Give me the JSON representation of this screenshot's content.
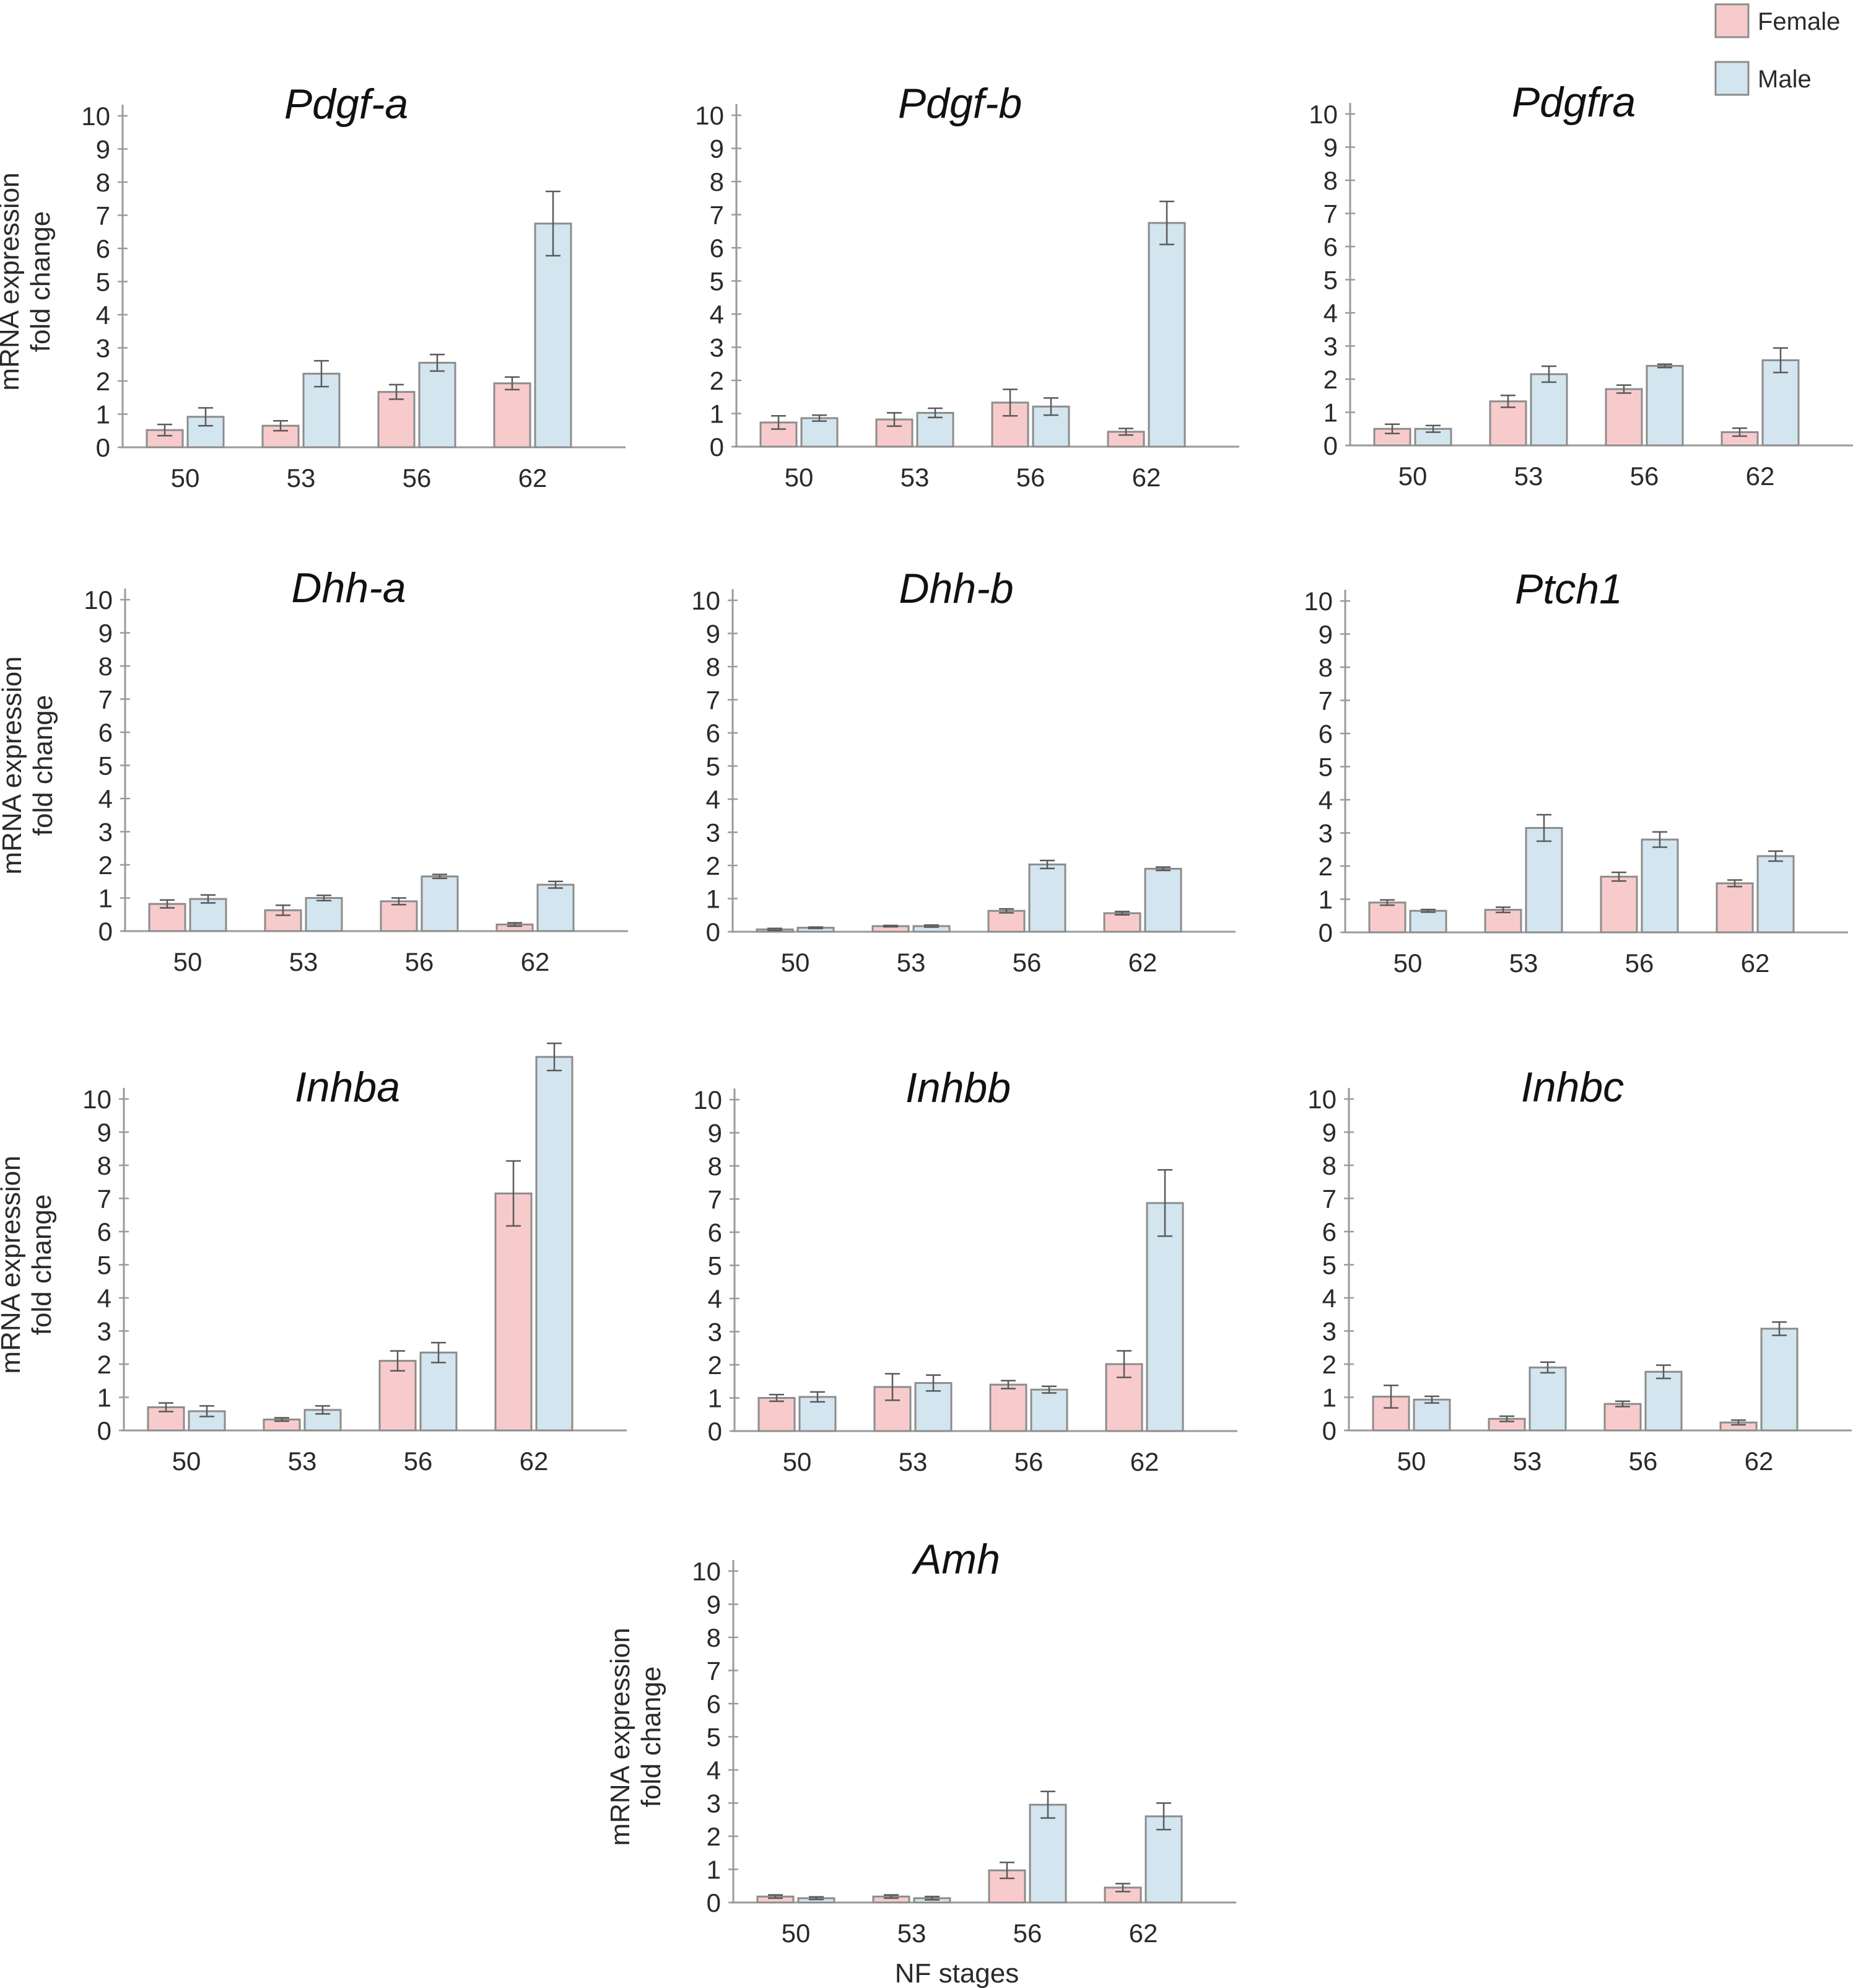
{
  "legend": {
    "items": [
      {
        "label": "Female",
        "color": "#f7cbcc"
      },
      {
        "label": "Male",
        "color": "#d3e5ee"
      }
    ]
  },
  "colors": {
    "female": "#f7cbcc",
    "male": "#d3e5ee",
    "bar_stroke": "#8c8c8c",
    "axis": "#9a9a9a",
    "error_bar": "#5a5a5a"
  },
  "shared_xlabel": "NF stages",
  "chart_data": [
    {
      "type": "bar",
      "title": "Pdgf-a",
      "xlabel": "",
      "ylabel": "mRNA expression\nfold change",
      "ylabel_lines": [
        "mRNA expression",
        "fold change"
      ],
      "categories": [
        "50",
        "53",
        "56",
        "62"
      ],
      "yticks": [
        0,
        1,
        2,
        3,
        4,
        5,
        6,
        7,
        8,
        9,
        10
      ],
      "ylim": [
        0,
        10
      ],
      "series": [
        {
          "name": "Female",
          "values": [
            0.52,
            0.65,
            1.67,
            1.93
          ],
          "errors": [
            0.17,
            0.15,
            0.22,
            0.19
          ]
        },
        {
          "name": "Male",
          "values": [
            0.92,
            2.22,
            2.55,
            6.75
          ],
          "errors": [
            0.27,
            0.39,
            0.25,
            0.97
          ]
        }
      ]
    },
    {
      "type": "bar",
      "title": "Pdgf-b",
      "xlabel": "",
      "ylabel": "",
      "ylabel_lines": [],
      "categories": [
        "50",
        "53",
        "56",
        "62"
      ],
      "yticks": [
        0,
        1,
        2,
        3,
        4,
        5,
        6,
        7,
        8,
        9,
        10
      ],
      "ylim": [
        0,
        10
      ],
      "series": [
        {
          "name": "Female",
          "values": [
            0.73,
            0.82,
            1.33,
            0.45
          ],
          "errors": [
            0.2,
            0.2,
            0.4,
            0.1
          ]
        },
        {
          "name": "Male",
          "values": [
            0.86,
            1.02,
            1.21,
            6.75
          ],
          "errors": [
            0.09,
            0.14,
            0.26,
            0.65
          ]
        }
      ]
    },
    {
      "type": "bar",
      "title": "Pdgfra",
      "xlabel": "",
      "ylabel": "",
      "ylabel_lines": [],
      "categories": [
        "50",
        "53",
        "56",
        "62"
      ],
      "yticks": [
        0,
        1,
        2,
        3,
        4,
        5,
        6,
        7,
        8,
        9,
        10
      ],
      "ylim": [
        0,
        10
      ],
      "series": [
        {
          "name": "Female",
          "values": [
            0.5,
            1.33,
            1.7,
            0.4
          ],
          "errors": [
            0.14,
            0.18,
            0.12,
            0.12
          ]
        },
        {
          "name": "Male",
          "values": [
            0.5,
            2.15,
            2.4,
            2.57
          ],
          "errors": [
            0.1,
            0.24,
            0.05,
            0.37
          ]
        }
      ]
    },
    {
      "type": "bar",
      "title": "Dhh-a",
      "xlabel": "",
      "ylabel": "mRNA expression\nfold change",
      "ylabel_lines": [
        "mRNA expression",
        "fold change"
      ],
      "categories": [
        "50",
        "53",
        "56",
        "62"
      ],
      "yticks": [
        0,
        1,
        2,
        3,
        4,
        5,
        6,
        7,
        8,
        9,
        10
      ],
      "ylim": [
        0,
        10
      ],
      "series": [
        {
          "name": "Female",
          "values": [
            0.82,
            0.63,
            0.9,
            0.2
          ],
          "errors": [
            0.12,
            0.15,
            0.1,
            0.05
          ]
        },
        {
          "name": "Male",
          "values": [
            0.97,
            1.0,
            1.65,
            1.4
          ],
          "errors": [
            0.12,
            0.08,
            0.06,
            0.1
          ]
        }
      ]
    },
    {
      "type": "bar",
      "title": "Dhh-b",
      "xlabel": "",
      "ylabel": "",
      "ylabel_lines": [],
      "categories": [
        "50",
        "53",
        "56",
        "62"
      ],
      "yticks": [
        0,
        1,
        2,
        3,
        4,
        5,
        6,
        7,
        8,
        9,
        10
      ],
      "ylim": [
        0,
        10
      ],
      "series": [
        {
          "name": "Female",
          "values": [
            0.07,
            0.17,
            0.63,
            0.56
          ],
          "errors": [
            0.03,
            0.02,
            0.06,
            0.05
          ]
        },
        {
          "name": "Male",
          "values": [
            0.12,
            0.17,
            2.03,
            1.9
          ],
          "errors": [
            0.02,
            0.03,
            0.12,
            0.05
          ]
        }
      ]
    },
    {
      "type": "bar",
      "title": "Ptch1",
      "xlabel": "",
      "ylabel": "",
      "ylabel_lines": [],
      "categories": [
        "50",
        "53",
        "56",
        "62"
      ],
      "yticks": [
        0,
        1,
        2,
        3,
        4,
        5,
        6,
        7,
        8,
        9,
        10
      ],
      "ylim": [
        0,
        10
      ],
      "series": [
        {
          "name": "Female",
          "values": [
            0.9,
            0.68,
            1.68,
            1.48
          ],
          "errors": [
            0.08,
            0.08,
            0.13,
            0.1
          ]
        },
        {
          "name": "Male",
          "values": [
            0.65,
            3.15,
            2.8,
            2.3
          ],
          "errors": [
            0.04,
            0.4,
            0.23,
            0.15
          ]
        }
      ]
    },
    {
      "type": "bar",
      "title": "Inhba",
      "xlabel": "",
      "ylabel": "mRNA expression\nfold change",
      "ylabel_lines": [
        "mRNA expression",
        "fold change"
      ],
      "categories": [
        "50",
        "53",
        "56",
        "62"
      ],
      "yticks": [
        0,
        1,
        2,
        3,
        4,
        5,
        6,
        7,
        8,
        9,
        10
      ],
      "ylim": [
        0,
        10
      ],
      "series": [
        {
          "name": "Female",
          "values": [
            0.7,
            0.33,
            2.1,
            7.15
          ],
          "errors": [
            0.13,
            0.05,
            0.3,
            0.98
          ]
        },
        {
          "name": "Male",
          "values": [
            0.58,
            0.62,
            2.35,
            11.27
          ],
          "errors": [
            0.16,
            0.12,
            0.3,
            0.41
          ]
        }
      ]
    },
    {
      "type": "bar",
      "title": "Inhbb",
      "xlabel": "",
      "ylabel": "",
      "ylabel_lines": [],
      "categories": [
        "50",
        "53",
        "56",
        "62"
      ],
      "yticks": [
        0,
        1,
        2,
        3,
        4,
        5,
        6,
        7,
        8,
        9,
        10
      ],
      "ylim": [
        0,
        10
      ],
      "series": [
        {
          "name": "Female",
          "values": [
            1.0,
            1.33,
            1.4,
            2.02
          ],
          "errors": [
            0.1,
            0.4,
            0.12,
            0.4
          ]
        },
        {
          "name": "Male",
          "values": [
            1.03,
            1.45,
            1.25,
            6.88
          ],
          "errors": [
            0.15,
            0.24,
            0.1,
            1.0
          ]
        }
      ]
    },
    {
      "type": "bar",
      "title": "Inhbc",
      "xlabel": "",
      "ylabel": "",
      "ylabel_lines": [],
      "categories": [
        "50",
        "53",
        "56",
        "62"
      ],
      "yticks": [
        0,
        1,
        2,
        3,
        4,
        5,
        6,
        7,
        8,
        9,
        10
      ],
      "ylim": [
        0,
        10
      ],
      "series": [
        {
          "name": "Female",
          "values": [
            1.02,
            0.35,
            0.8,
            0.24
          ],
          "errors": [
            0.34,
            0.08,
            0.08,
            0.07
          ]
        },
        {
          "name": "Male",
          "values": [
            0.93,
            1.9,
            1.77,
            3.07
          ],
          "errors": [
            0.1,
            0.16,
            0.2,
            0.2
          ]
        }
      ]
    },
    {
      "type": "bar",
      "title": "Amh",
      "xlabel": "NF stages",
      "ylabel": "mRNA expression\nfold change",
      "ylabel_lines": [
        "mRNA expression",
        "fold change"
      ],
      "categories": [
        "50",
        "53",
        "56",
        "62"
      ],
      "yticks": [
        0,
        1,
        2,
        3,
        4,
        5,
        6,
        7,
        8,
        9,
        10
      ],
      "ylim": [
        0,
        10
      ],
      "series": [
        {
          "name": "Female",
          "values": [
            0.18,
            0.18,
            0.97,
            0.45
          ],
          "errors": [
            0.05,
            0.05,
            0.24,
            0.12
          ]
        },
        {
          "name": "Male",
          "values": [
            0.13,
            0.13,
            2.95,
            2.6
          ],
          "errors": [
            0.04,
            0.05,
            0.4,
            0.4
          ]
        }
      ]
    }
  ]
}
